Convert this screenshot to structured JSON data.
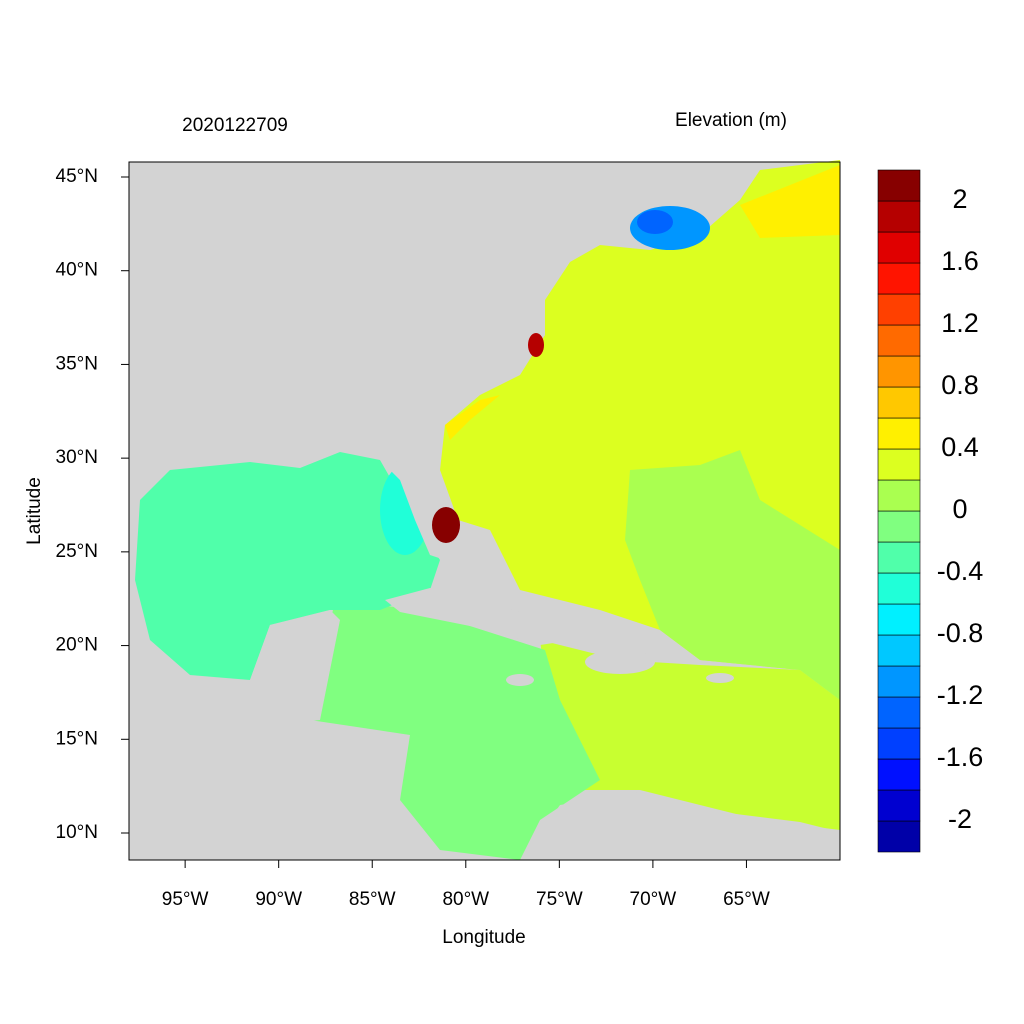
{
  "chart_data": {
    "type": "map",
    "title": "2020122709",
    "subtitle": "Elevation (m)",
    "x_label": "Longitude",
    "y_label": "Latitude",
    "xlim": [
      -98,
      -60
    ],
    "ylim": [
      8.56,
      45.8
    ],
    "xticks": [
      {
        "value": -95,
        "label": "95°W"
      },
      {
        "value": -90,
        "label": "90°W"
      },
      {
        "value": -85,
        "label": "85°W"
      },
      {
        "value": -80,
        "label": "80°W"
      },
      {
        "value": -75,
        "label": "75°W"
      },
      {
        "value": -70,
        "label": "70°W"
      },
      {
        "value": -65,
        "label": "65°W"
      }
    ],
    "yticks": [
      {
        "value": 10,
        "label": "10°N"
      },
      {
        "value": 15,
        "label": "15°N"
      },
      {
        "value": 20,
        "label": "20°N"
      },
      {
        "value": 25,
        "label": "25°N"
      },
      {
        "value": 30,
        "label": "30°N"
      },
      {
        "value": 35,
        "label": "35°N"
      },
      {
        "value": 40,
        "label": "40°N"
      },
      {
        "value": 45,
        "label": "45°N"
      }
    ],
    "colorbar": {
      "lim": [
        -2.2,
        2.2
      ],
      "ticks": [
        2,
        1.6,
        1.2,
        0.8,
        0.4,
        0,
        -0.4,
        -0.8,
        -1.2,
        -1.6,
        -2
      ],
      "colors": [
        "#0000a8",
        "#0000d0",
        "#0010ff",
        "#0040ff",
        "#0064ff",
        "#0096ff",
        "#00c8ff",
        "#00f0ff",
        "#20ffd8",
        "#50ffaa",
        "#80ff80",
        "#aaff50",
        "#dcff20",
        "#fff000",
        "#ffc800",
        "#ff9500",
        "#ff6a00",
        "#ff4000",
        "#ff1400",
        "#e00000",
        "#b50000",
        "#870000"
      ]
    }
  }
}
